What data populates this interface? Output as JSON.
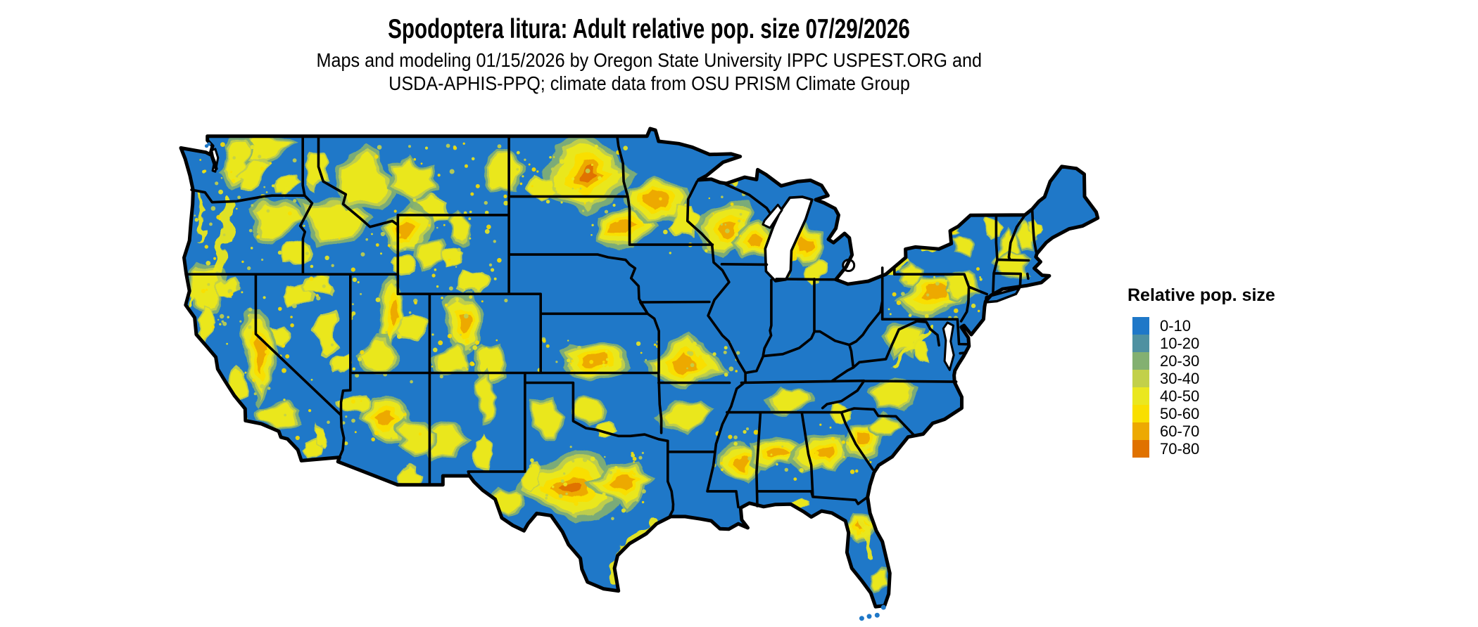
{
  "header": {
    "title": "Spodoptera litura: Adult relative pop. size 07/29/2026",
    "subtitle_line1": "Maps and modeling 01/15/2026 by Oregon State University IPPC USPEST.ORG and",
    "subtitle_line2": "USDA-APHIS-PPQ; climate data from OSU PRISM Climate Group"
  },
  "legend": {
    "title": "Relative pop. size",
    "items": [
      {
        "label": "0-10",
        "color": "#1f78c8"
      },
      {
        "label": "10-20",
        "color": "#4f91a1"
      },
      {
        "label": "20-30",
        "color": "#83b071"
      },
      {
        "label": "30-40",
        "color": "#c2d04a"
      },
      {
        "label": "40-50",
        "color": "#eae71f"
      },
      {
        "label": "50-60",
        "color": "#f9df00"
      },
      {
        "label": "60-70",
        "color": "#eda902"
      },
      {
        "label": "70-80",
        "color": "#e07200"
      }
    ]
  },
  "map": {
    "region": "Continental United States",
    "species": "Spodoptera litura",
    "variable": "Adult relative pop. size",
    "map_date": "07/29/2026",
    "model_date": "01/15/2026",
    "base_value_class": "0-10",
    "base_color": "#1f78c8",
    "state_border_color": "#000000",
    "background_color": "#ffffff"
  }
}
